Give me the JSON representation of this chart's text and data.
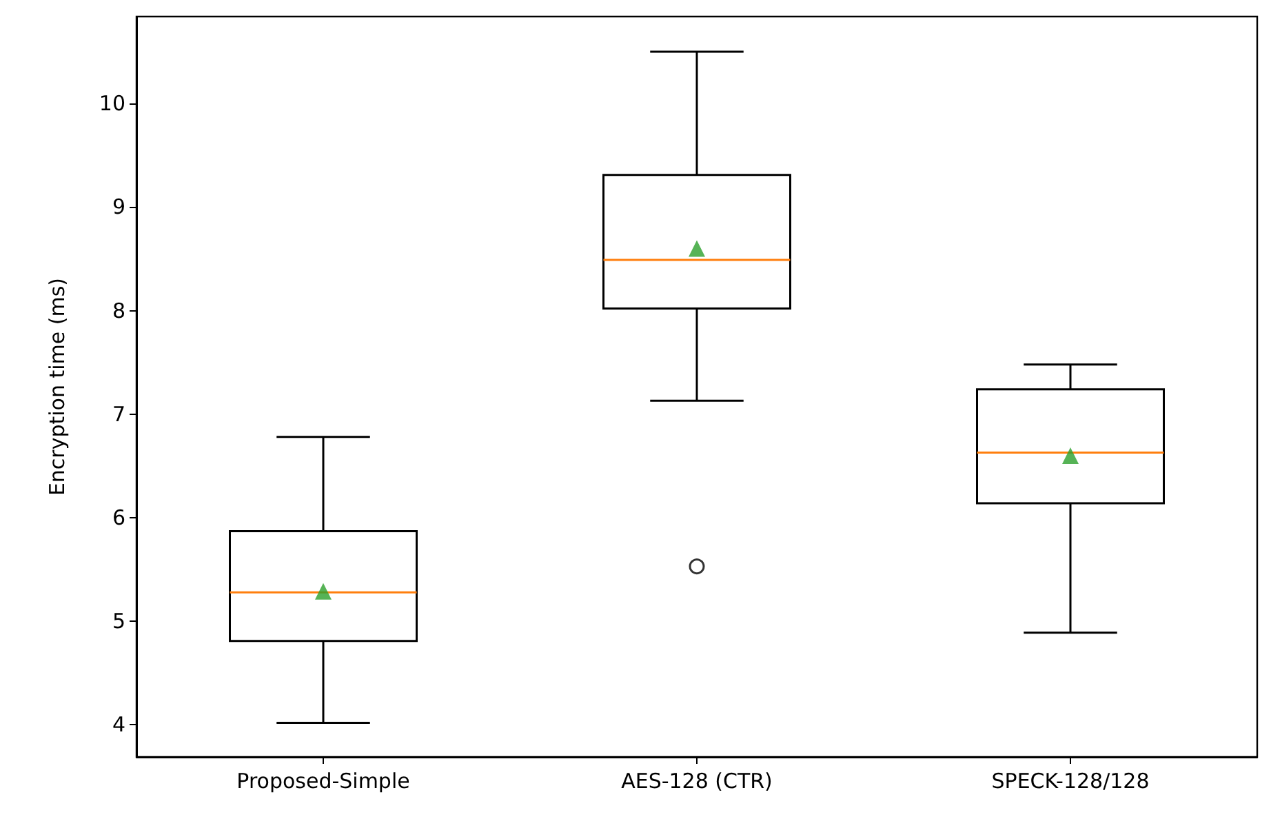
{
  "chart_data": {
    "type": "box",
    "ylabel": "Encryption time (ms)",
    "categories": [
      "Proposed-Simple",
      "AES-128 (CTR)",
      "SPECK-128/128"
    ],
    "boxes": [
      {
        "low": 4.02,
        "q1": 4.81,
        "median": 5.28,
        "q3": 5.87,
        "high": 6.78,
        "mean": 5.29
      },
      {
        "low": 7.13,
        "q1": 8.02,
        "median": 8.49,
        "q3": 9.31,
        "high": 10.5,
        "mean": 8.6,
        "outliers": [
          5.53
        ]
      },
      {
        "low": 4.89,
        "q1": 6.14,
        "median": 6.63,
        "q3": 7.24,
        "high": 7.48,
        "mean": 6.6
      }
    ],
    "ylim": [
      3.69,
      10.84
    ],
    "yticks": [
      4,
      5,
      6,
      7,
      8,
      9,
      10
    ],
    "grid": false,
    "marker": "triangle"
  }
}
